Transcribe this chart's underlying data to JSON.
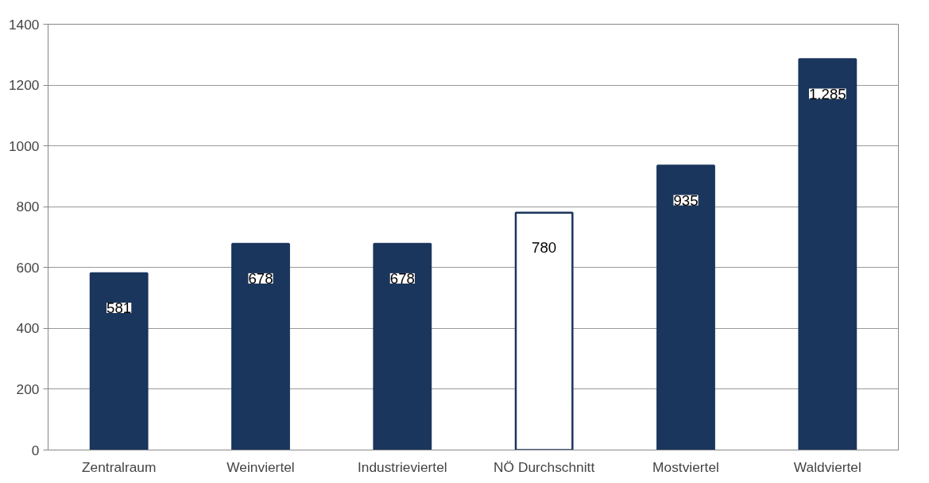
{
  "chart_data": {
    "type": "bar",
    "categories": [
      "Zentralraum",
      "Weinviertel",
      "Industrieviertel",
      "NÖ Durchschnitt",
      "Mostviertel",
      "Waldviertel"
    ],
    "values": [
      581,
      678,
      678,
      780,
      935,
      1285
    ],
    "colors": [
      "#1b365d",
      "#1b365d",
      "#1b365d",
      "#ffffff",
      "#1b365d",
      "#1b365d"
    ],
    "value_labels": [
      "581",
      "678",
      "678",
      "780",
      "935",
      "1.285"
    ],
    "ylim": [
      0,
      1400
    ],
    "yticks": [
      0,
      200,
      400,
      600,
      800,
      1000,
      1200,
      1400
    ],
    "grid": "y"
  }
}
